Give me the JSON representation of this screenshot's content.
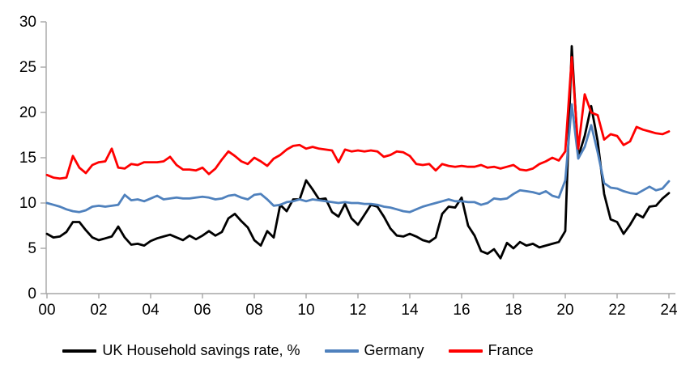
{
  "chart": {
    "title": "",
    "background": "#ffffff",
    "axis_color": "#a6a6a6",
    "legend_position": "bottom"
  },
  "chart_data": {
    "type": "line",
    "grid": false,
    "xlabel": "",
    "ylabel": "",
    "ylim": [
      0,
      30
    ],
    "y_ticks": [
      0,
      5,
      10,
      15,
      20,
      25,
      30
    ],
    "x_start_year": 2000,
    "x_step_years": 0.25,
    "x_tick_labels": [
      "00",
      "02",
      "04",
      "06",
      "08",
      "10",
      "12",
      "14",
      "16",
      "18",
      "20",
      "22",
      "24"
    ],
    "x_tick_interval_years": 2,
    "series": [
      {
        "name": "UK Household savings rate, %",
        "color": "#000000",
        "values": [
          6.6,
          6.2,
          6.3,
          6.8,
          7.9,
          7.9,
          7.0,
          6.2,
          5.9,
          6.1,
          6.3,
          7.4,
          6.2,
          5.4,
          5.5,
          5.3,
          5.8,
          6.1,
          6.3,
          6.5,
          6.2,
          5.9,
          6.4,
          6.0,
          6.4,
          6.9,
          6.4,
          6.8,
          8.3,
          8.8,
          8.0,
          7.3,
          5.9,
          5.3,
          6.9,
          6.2,
          9.8,
          9.1,
          10.4,
          10.4,
          12.5,
          11.5,
          10.4,
          10.5,
          9.0,
          8.5,
          9.9,
          8.3,
          7.6,
          8.7,
          9.8,
          9.6,
          8.5,
          7.2,
          6.4,
          6.3,
          6.6,
          6.3,
          5.9,
          5.7,
          6.2,
          8.8,
          9.6,
          9.5,
          10.6,
          7.5,
          6.4,
          4.7,
          4.4,
          4.9,
          3.9,
          5.6,
          5.0,
          5.7,
          5.3,
          5.5,
          5.1,
          5.3,
          5.5,
          5.7,
          6.9,
          27.3,
          15.1,
          17.4,
          20.7,
          16.8,
          11.0,
          8.2,
          7.9,
          6.6,
          7.6,
          8.8,
          8.4,
          9.6,
          9.7,
          10.5,
          11.1
        ]
      },
      {
        "name": "Germany",
        "color": "#4f81bd",
        "values": [
          10.0,
          9.8,
          9.6,
          9.3,
          9.1,
          9.0,
          9.2,
          9.6,
          9.7,
          9.6,
          9.7,
          9.8,
          10.9,
          10.3,
          10.4,
          10.2,
          10.5,
          10.8,
          10.4,
          10.5,
          10.6,
          10.5,
          10.5,
          10.6,
          10.7,
          10.6,
          10.4,
          10.5,
          10.8,
          10.9,
          10.6,
          10.4,
          10.9,
          11.0,
          10.4,
          9.7,
          9.8,
          10.1,
          10.2,
          10.4,
          10.2,
          10.4,
          10.3,
          10.2,
          10.1,
          10.0,
          10.1,
          10.0,
          10.0,
          9.9,
          9.9,
          9.8,
          9.6,
          9.5,
          9.3,
          9.1,
          9.0,
          9.3,
          9.6,
          9.8,
          10.0,
          10.2,
          10.4,
          10.2,
          10.2,
          10.1,
          10.1,
          9.8,
          10.0,
          10.5,
          10.4,
          10.5,
          11.0,
          11.4,
          11.3,
          11.2,
          11.0,
          11.3,
          10.8,
          10.6,
          12.5,
          20.9,
          14.9,
          16.2,
          18.6,
          15.6,
          12.2,
          11.7,
          11.6,
          11.3,
          11.1,
          11.0,
          11.4,
          11.8,
          11.4,
          11.6,
          12.4
        ]
      },
      {
        "name": "France",
        "color": "#ff0000",
        "values": [
          13.1,
          12.8,
          12.7,
          12.8,
          15.2,
          13.9,
          13.3,
          14.2,
          14.5,
          14.6,
          16.0,
          13.9,
          13.8,
          14.3,
          14.2,
          14.5,
          14.5,
          14.5,
          14.6,
          15.1,
          14.2,
          13.7,
          13.7,
          13.6,
          13.9,
          13.2,
          13.8,
          14.8,
          15.7,
          15.2,
          14.6,
          14.3,
          15.0,
          14.6,
          14.1,
          14.9,
          15.3,
          15.9,
          16.3,
          16.4,
          16.0,
          16.2,
          16.0,
          15.9,
          15.8,
          14.5,
          15.9,
          15.7,
          15.8,
          15.7,
          15.8,
          15.7,
          15.1,
          15.3,
          15.7,
          15.6,
          15.2,
          14.3,
          14.2,
          14.3,
          13.6,
          14.3,
          14.1,
          14.0,
          14.1,
          14.0,
          14.0,
          14.2,
          13.9,
          14.0,
          13.8,
          14.0,
          14.2,
          13.7,
          13.6,
          13.8,
          14.3,
          14.6,
          15.0,
          14.7,
          15.7,
          26.1,
          16.0,
          22.0,
          20.0,
          19.7,
          17.0,
          17.6,
          17.4,
          16.4,
          16.8,
          18.4,
          18.1,
          17.9,
          17.7,
          17.6,
          17.9
        ]
      }
    ]
  }
}
